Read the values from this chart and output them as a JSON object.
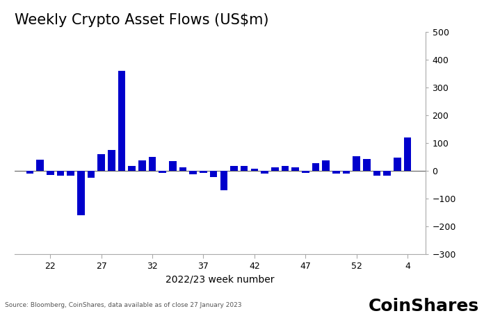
{
  "title": "Weekly Crypto Asset Flows (US$m)",
  "xlabel": "2022/23 week number",
  "source": "Source: Bloomberg, CoinShares, data available as of close 27 January 2023",
  "coinshares_label": "CoinShares",
  "bar_color": "#0000CC",
  "background_color": "#FFFFFF",
  "ylim": [
    -300,
    500
  ],
  "yticks": [
    -300,
    -200,
    -100,
    0,
    100,
    200,
    300,
    400,
    500
  ],
  "xtick_labels": [
    "22",
    "27",
    "32",
    "37",
    "42",
    "47",
    "52",
    "4"
  ],
  "xtick_positions": [
    22,
    27,
    32,
    37,
    42,
    47,
    52,
    57
  ],
  "weeks": [
    20,
    21,
    22,
    23,
    24,
    25,
    26,
    27,
    28,
    29,
    30,
    31,
    32,
    33,
    34,
    35,
    36,
    37,
    38,
    39,
    40,
    41,
    42,
    43,
    44,
    45,
    46,
    47,
    48,
    49,
    50,
    51,
    52,
    53,
    54,
    55,
    56,
    57
  ],
  "values": [
    -10,
    40,
    -15,
    -18,
    -18,
    -160,
    -25,
    60,
    75,
    360,
    18,
    38,
    50,
    -8,
    35,
    12,
    -12,
    -8,
    -22,
    -70,
    18,
    18,
    8,
    -10,
    12,
    18,
    12,
    -8,
    28,
    38,
    -10,
    -10,
    52,
    42,
    -18,
    -18,
    48,
    120
  ],
  "xlim": [
    18.5,
    58.8
  ],
  "bar_width": 0.72,
  "title_fontsize": 15,
  "tick_fontsize": 9,
  "xlabel_fontsize": 10,
  "source_fontsize": 6.5,
  "coinshares_fontsize": 18
}
